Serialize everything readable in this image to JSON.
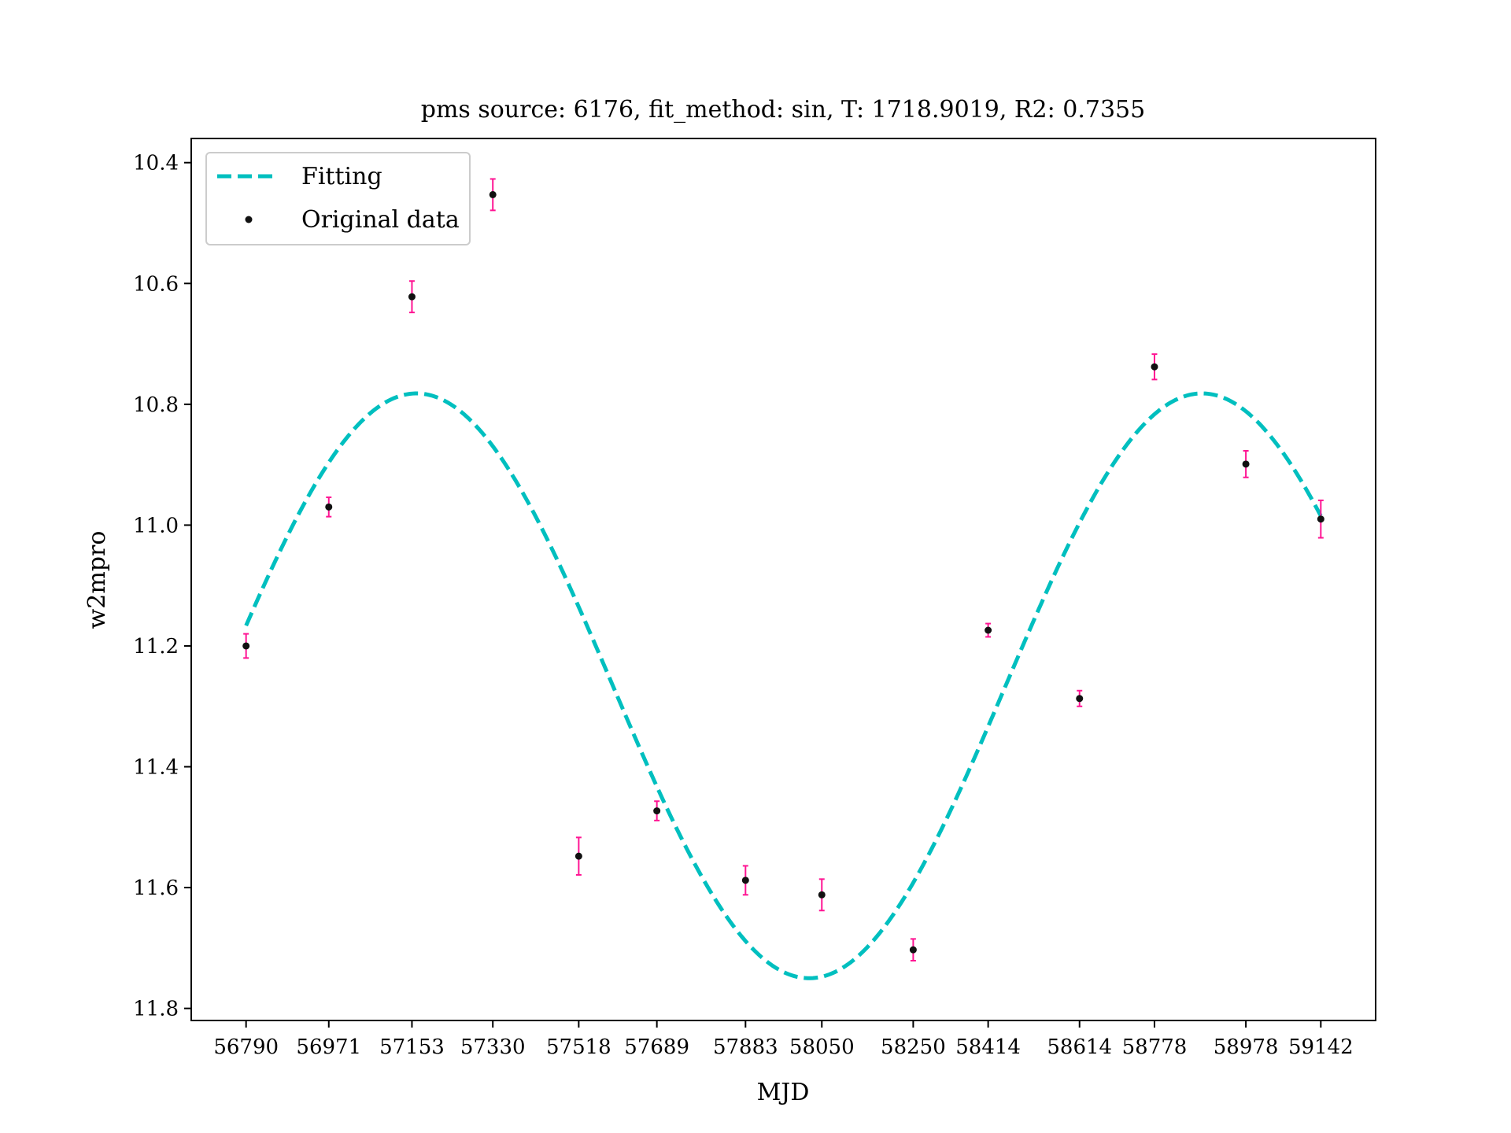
{
  "chart_data": {
    "type": "scatter",
    "title": "pms source: 6176,  fit_method: sin,  T: 1718.9019,  R2: 0.7355",
    "xlabel": "MJD",
    "ylabel": "w2mpro",
    "y_inverted": true,
    "ylim": [
      11.82,
      10.36
    ],
    "y_ticks": [
      10.4,
      10.6,
      10.8,
      11.0,
      11.2,
      11.4,
      11.6,
      11.8
    ],
    "y_tick_labels": [
      "10.4",
      "10.6",
      "10.8",
      "11.0",
      "11.2",
      "11.4",
      "11.6",
      "11.8"
    ],
    "x_ticks": [
      56790,
      56971,
      57153,
      57330,
      57518,
      57689,
      57883,
      58050,
      58250,
      58414,
      58614,
      58778,
      58978,
      59142
    ],
    "x_tick_labels": [
      "56790",
      "56971",
      "57153",
      "57330",
      "57518",
      "57689",
      "57883",
      "58050",
      "58250",
      "58414",
      "58614",
      "58778",
      "58978",
      "59142"
    ],
    "xlim": [
      56670,
      59262
    ],
    "legend_position": "top-left",
    "legend": [
      {
        "label": "Fitting",
        "style": "dashed-line"
      },
      {
        "label": "Original data",
        "style": "point"
      }
    ],
    "colors": {
      "fit": "#00bfbf",
      "point": "#111111",
      "errorbar": "#ff1493"
    },
    "series": [
      {
        "name": "Original data",
        "x": [
          56790,
          56971,
          57153,
          57330,
          57518,
          57689,
          57883,
          58050,
          58250,
          58414,
          58614,
          58778,
          58978,
          59142
        ],
        "y": [
          11.2,
          10.97,
          10.622,
          10.453,
          11.548,
          11.473,
          11.588,
          11.612,
          11.703,
          11.174,
          11.287,
          10.738,
          10.899,
          10.99
        ],
        "yerr": [
          0.02,
          0.016,
          0.026,
          0.026,
          0.031,
          0.016,
          0.024,
          0.026,
          0.018,
          0.011,
          0.013,
          0.021,
          0.022,
          0.031
        ]
      },
      {
        "name": "Fitting",
        "type": "sin",
        "period": 1718.9019,
        "offset": 11.266,
        "amplitude": 0.484,
        "peak_x": 57163,
        "x_start": 56790,
        "x_end": 59142
      }
    ]
  }
}
